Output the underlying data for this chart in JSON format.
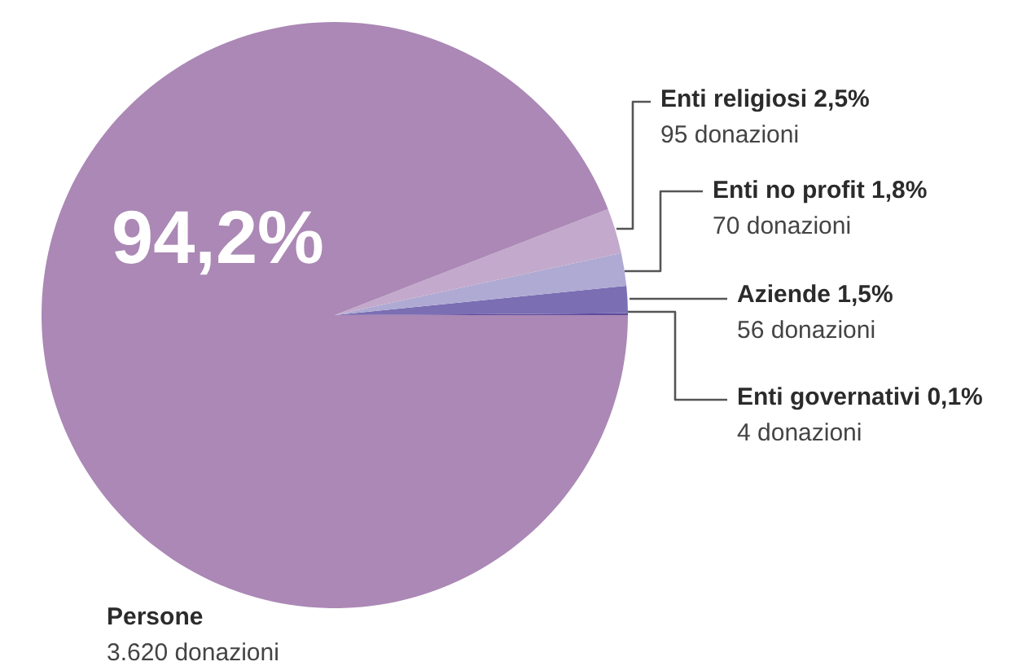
{
  "chart_data": {
    "type": "pie",
    "categories": [
      "Enti governativi",
      "Aziende",
      "Enti no profit",
      "Enti religiosi",
      "Persone"
    ],
    "values": [
      0.1,
      1.5,
      1.8,
      2.5,
      94.2
    ],
    "colors": [
      "#5b4c9e",
      "#7b6eb3",
      "#aeaad3",
      "#c3a9cb",
      "#ab88b5"
    ],
    "value_labels": [
      "0,1%",
      "1,5%",
      "1,8%",
      "2,5%",
      "94,2%"
    ],
    "annotations": [
      "4 donazioni",
      "56 donazioni",
      "70 donazioni",
      "95 donazioni",
      "3.620 donazioni"
    ]
  }
}
